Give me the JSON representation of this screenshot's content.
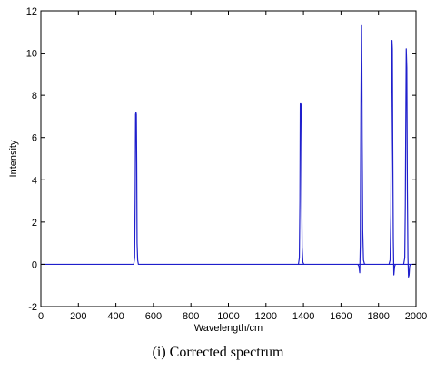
{
  "caption": "(i) Corrected spectrum",
  "chart_data": {
    "type": "line",
    "title": "",
    "xlabel": "Wavelength/cm",
    "ylabel": "Intensity",
    "xlim": [
      0,
      2000
    ],
    "ylim": [
      -2,
      12
    ],
    "xticks": [
      0,
      200,
      400,
      600,
      800,
      1000,
      1200,
      1400,
      1600,
      1800,
      2000
    ],
    "yticks": [
      -2,
      0,
      2,
      4,
      6,
      8,
      10,
      12
    ],
    "grid": false,
    "legend": "none",
    "line_color": "#1f1fcc",
    "series": [
      {
        "x": [
          0,
          495,
          500,
          503,
          505,
          507,
          509,
          511,
          513,
          516,
          520,
          2000
        ],
        "y": [
          0,
          0,
          0.3,
          3.5,
          7.1,
          7.2,
          7.1,
          4.8,
          1.0,
          0.2,
          0,
          0
        ]
      },
      {
        "x": [
          1373,
          1378,
          1381,
          1383,
          1386,
          1388,
          1390,
          1393,
          1397,
          1402
        ],
        "y": [
          0,
          0.3,
          3.0,
          7.6,
          7.6,
          7.5,
          4.4,
          0.8,
          0.1,
          0
        ]
      },
      {
        "x": [
          1690,
          1696,
          1700,
          1703,
          1706,
          1709,
          1711,
          1713,
          1716,
          1720,
          1726,
          1734
        ],
        "y": [
          0,
          -0.1,
          -0.4,
          0.9,
          7.2,
          11.3,
          10.6,
          6.0,
          1.6,
          0.2,
          0,
          0
        ]
      },
      {
        "x": [
          1856,
          1862,
          1866,
          1868,
          1870,
          1872,
          1874,
          1876,
          1879,
          1882,
          1886,
          1890
        ],
        "y": [
          0,
          0.2,
          2.4,
          6.0,
          10.0,
          10.6,
          10.2,
          5.9,
          1.2,
          -0.5,
          -0.1,
          0
        ]
      },
      {
        "x": [
          1934,
          1940,
          1943,
          1945,
          1948,
          1951,
          1954,
          1957,
          1960,
          1963,
          1966,
          1970
        ],
        "y": [
          0,
          0.3,
          2.8,
          6.0,
          10.2,
          9.3,
          3.5,
          0.3,
          -0.6,
          -0.5,
          -0.1,
          0
        ]
      }
    ]
  }
}
